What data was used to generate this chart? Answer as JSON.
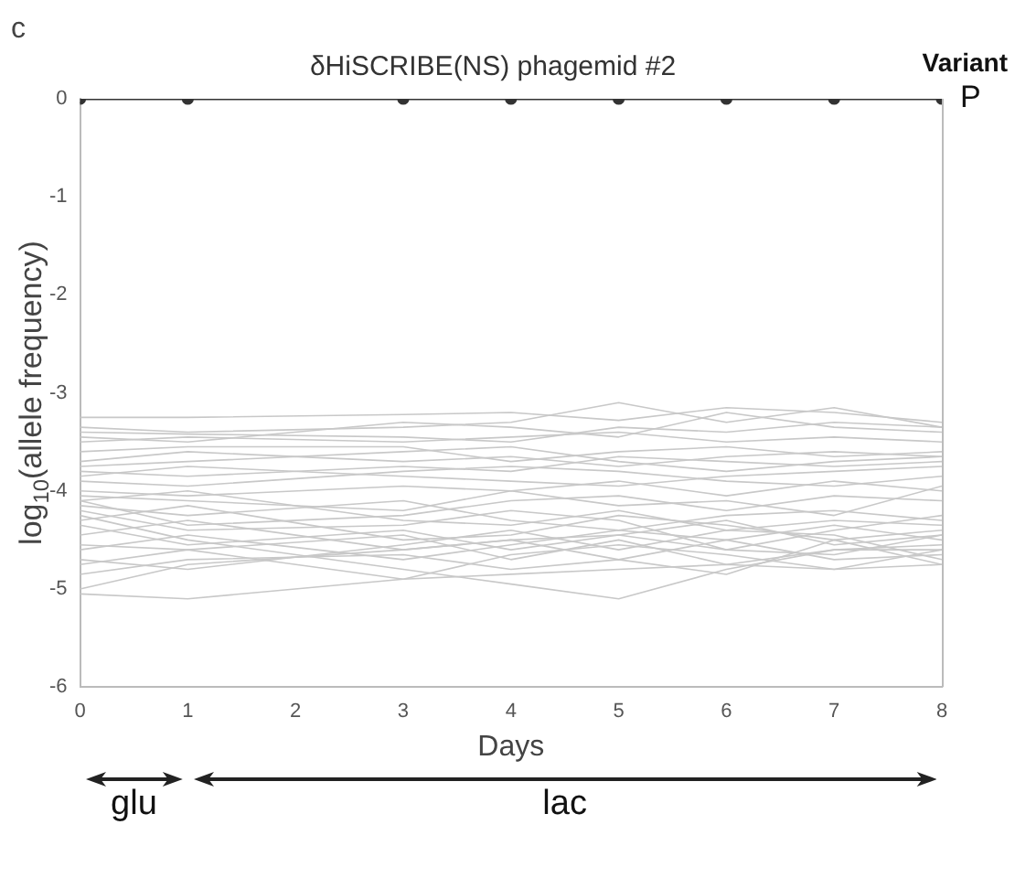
{
  "chart_data": {
    "type": "line",
    "title": "δHiSCRIBE(NS) phagemid #2",
    "xlabel": "Days",
    "ylabel": "log$_{10}$(allele frequency)",
    "legend_title": "Variant",
    "legend": "top right",
    "x": [
      0,
      1,
      3,
      4,
      5,
      6,
      7,
      8
    ],
    "xlim": [
      0,
      8
    ],
    "xticks": [
      0,
      1,
      2,
      3,
      4,
      5,
      6,
      7,
      8
    ],
    "ylim": [
      -6,
      0
    ],
    "yticks": [
      -6,
      -5,
      -4,
      -3,
      -2,
      -1,
      0
    ],
    "grid": false,
    "annotations": [
      "c",
      "glu",
      "lac"
    ],
    "series": [
      {
        "name": "P",
        "color": "#333333",
        "marker": "circle",
        "values": [
          0,
          0,
          0,
          0,
          0,
          0,
          0,
          0
        ]
      },
      {
        "color": "#c8c8c8",
        "values": [
          -3.25,
          -3.25,
          -3.22,
          -3.2,
          -3.28,
          -3.15,
          -3.2,
          -3.3
        ]
      },
      {
        "color": "#c8c8c8",
        "values": [
          -3.35,
          -3.4,
          -3.35,
          -3.3,
          -3.1,
          -3.3,
          -3.15,
          -3.35
        ]
      },
      {
        "color": "#c8c8c8",
        "values": [
          -3.4,
          -3.42,
          -3.45,
          -3.5,
          -3.35,
          -3.4,
          -3.3,
          -3.35
        ]
      },
      {
        "color": "#c8c8c8",
        "values": [
          -3.45,
          -3.5,
          -3.3,
          -3.35,
          -3.45,
          -3.2,
          -3.35,
          -3.4
        ]
      },
      {
        "color": "#c8c8c8",
        "values": [
          -3.5,
          -3.45,
          -3.5,
          -3.45,
          -3.4,
          -3.5,
          -3.45,
          -3.5
        ]
      },
      {
        "color": "#c8c8c8",
        "values": [
          -3.6,
          -3.55,
          -3.55,
          -3.7,
          -3.6,
          -3.55,
          -3.65,
          -3.6
        ]
      },
      {
        "color": "#c8c8c8",
        "values": [
          -3.75,
          -3.7,
          -3.6,
          -3.55,
          -3.7,
          -3.8,
          -3.7,
          -3.65
        ]
      },
      {
        "color": "#c8c8c8",
        "values": [
          -3.8,
          -3.85,
          -3.75,
          -3.8,
          -3.65,
          -3.7,
          -3.75,
          -3.7
        ]
      },
      {
        "color": "#c8c8c8",
        "values": [
          -3.85,
          -3.75,
          -3.85,
          -3.9,
          -3.95,
          -3.85,
          -3.8,
          -3.75
        ]
      },
      {
        "color": "#c8c8c8",
        "values": [
          -3.9,
          -3.95,
          -3.8,
          -3.75,
          -3.8,
          -3.9,
          -3.95,
          -3.85
        ]
      },
      {
        "color": "#c8c8c8",
        "values": [
          -4.0,
          -4.05,
          -3.95,
          -4.0,
          -3.9,
          -4.05,
          -3.9,
          -4.0
        ]
      },
      {
        "color": "#c8c8c8",
        "values": [
          -4.05,
          -4.1,
          -4.2,
          -4.0,
          -4.15,
          -4.1,
          -4.25,
          -3.95
        ]
      },
      {
        "color": "#c8c8c8",
        "values": [
          -4.1,
          -4.0,
          -4.3,
          -4.35,
          -4.2,
          -4.4,
          -4.3,
          -4.35
        ]
      },
      {
        "color": "#c8c8c8",
        "values": [
          -4.15,
          -4.25,
          -4.1,
          -4.3,
          -4.4,
          -4.25,
          -4.2,
          -4.3
        ]
      },
      {
        "color": "#c8c8c8",
        "values": [
          -4.2,
          -4.4,
          -4.35,
          -4.2,
          -4.3,
          -4.6,
          -4.4,
          -4.25
        ]
      },
      {
        "color": "#c8c8c8",
        "values": [
          -4.3,
          -4.15,
          -4.5,
          -4.45,
          -4.25,
          -4.35,
          -4.5,
          -4.4
        ]
      },
      {
        "color": "#c8c8c8",
        "values": [
          -4.35,
          -4.55,
          -4.4,
          -4.6,
          -4.45,
          -4.3,
          -4.55,
          -4.45
        ]
      },
      {
        "color": "#c8c8c8",
        "values": [
          -4.45,
          -4.3,
          -4.6,
          -4.5,
          -4.7,
          -4.5,
          -4.35,
          -4.5
        ]
      },
      {
        "color": "#c8c8c8",
        "values": [
          -4.55,
          -4.6,
          -4.45,
          -4.7,
          -4.5,
          -4.75,
          -4.6,
          -4.55
        ]
      },
      {
        "color": "#c8c8c8",
        "values": [
          -4.6,
          -4.45,
          -4.7,
          -4.55,
          -4.4,
          -4.5,
          -4.7,
          -4.65
        ]
      },
      {
        "color": "#c8c8c8",
        "values": [
          -4.7,
          -4.8,
          -4.55,
          -4.4,
          -4.6,
          -4.4,
          -4.45,
          -4.7
        ]
      },
      {
        "color": "#c8c8c8",
        "values": [
          -4.75,
          -4.6,
          -4.9,
          -4.65,
          -4.55,
          -4.65,
          -4.8,
          -4.6
        ]
      },
      {
        "color": "#c8c8c8",
        "values": [
          -4.85,
          -4.7,
          -4.65,
          -4.8,
          -4.7,
          -4.85,
          -4.5,
          -4.75
        ]
      },
      {
        "color": "#c8c8c8",
        "values": [
          -5.0,
          -4.75,
          -4.6,
          -4.5,
          -4.45,
          -4.6,
          -4.65,
          -4.45
        ]
      },
      {
        "color": "#c8c8c8",
        "values": [
          -5.05,
          -5.1,
          -4.9,
          -4.85,
          -4.8,
          -4.75,
          -4.8,
          -4.75
        ]
      },
      {
        "color": "#c8c8c8",
        "values": [
          -4.25,
          -4.5,
          -4.8,
          -4.95,
          -5.1,
          -4.8,
          -4.6,
          -4.6
        ]
      },
      {
        "color": "#c8c8c8",
        "values": [
          -3.7,
          -3.6,
          -3.7,
          -3.65,
          -3.75,
          -3.65,
          -3.6,
          -3.65
        ]
      },
      {
        "color": "#c8c8c8",
        "values": [
          -4.1,
          -4.35,
          -4.25,
          -4.1,
          -4.05,
          -4.2,
          -4.05,
          -4.1
        ]
      }
    ]
  }
}
